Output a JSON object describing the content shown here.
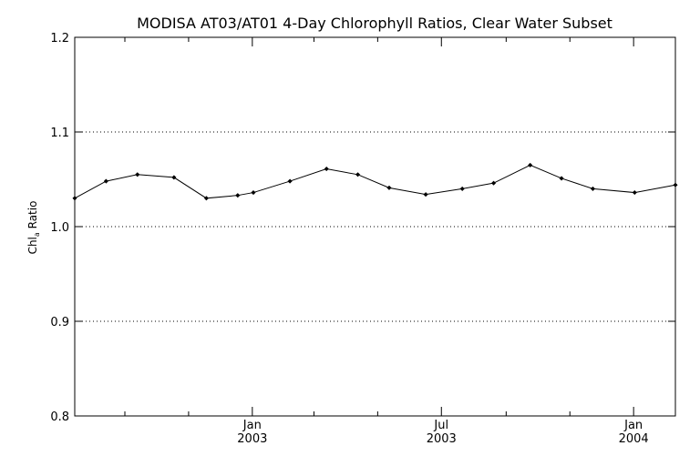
{
  "chart_data": {
    "type": "line",
    "title": "MODISA AT03/AT01 4-Day Chlorophyll Ratios, Clear Water Subset",
    "ylabel_main": "Chl",
    "ylabel_sub": "a",
    "ylabel_rest": " Ratio",
    "xlabel": "",
    "ylim": [
      0.8,
      1.2
    ],
    "xlim": [
      "2002-07-15",
      "2004-02-10"
    ],
    "y_ticks": [
      {
        "value": 0.8,
        "label": "0.8"
      },
      {
        "value": 0.9,
        "label": "0.9"
      },
      {
        "value": 1.0,
        "label": "1.0"
      },
      {
        "value": 1.1,
        "label": "1.1"
      },
      {
        "value": 1.2,
        "label": "1.2"
      }
    ],
    "y_gridlines": [
      0.9,
      1.0,
      1.1
    ],
    "grid": "horizontal dotted at 0.9, 1.0, 1.1",
    "x_major_ticks": [
      {
        "date": "2003-01-01",
        "month": "Jan",
        "year": "2003"
      },
      {
        "date": "2003-07-01",
        "month": "Jul",
        "year": "2003"
      },
      {
        "date": "2004-01-01",
        "month": "Jan",
        "year": "2004"
      }
    ],
    "x_minor_ticks": [
      "2002-09-01",
      "2002-11-01",
      "2003-03-01",
      "2003-05-01",
      "2003-09-01",
      "2003-11-01"
    ],
    "series": [
      {
        "x": [
          "2002-07-15",
          "2002-08-14",
          "2002-09-13",
          "2002-10-18",
          "2002-11-18",
          "2002-12-18",
          "2003-01-02",
          "2003-02-06",
          "2003-03-13",
          "2003-04-12",
          "2003-05-12",
          "2003-06-16",
          "2003-07-21",
          "2003-08-20",
          "2003-09-24",
          "2003-10-24",
          "2003-11-23",
          "2004-01-02",
          "2004-02-10"
        ],
        "y": [
          1.03,
          1.048,
          1.055,
          1.052,
          1.03,
          1.033,
          1.036,
          1.048,
          1.061,
          1.055,
          1.041,
          1.034,
          1.04,
          1.046,
          1.065,
          1.051,
          1.04,
          1.036,
          1.044
        ]
      }
    ],
    "line_color": "#000000",
    "marker": "small diamond"
  }
}
